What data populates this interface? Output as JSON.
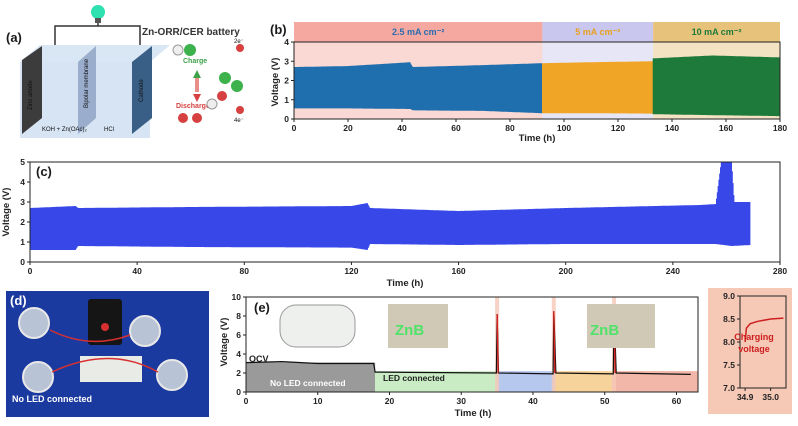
{
  "panel_a": {
    "label": "(a)",
    "title": "Zn-ORR/CER battery",
    "labels": {
      "anode": "Zinc anode",
      "membrane": "Bipolar membrane",
      "cathode": "Cathode",
      "electrolyte_left": "KOH + Zn(OAc)₂",
      "electrolyte_right": "HCl",
      "charge": "Charge",
      "discharge": "Discharge",
      "e_up": "2e⁻",
      "e_down": "4e⁻"
    },
    "colors": {
      "anode": "#3c3c3c",
      "membrane": "#8fa3c4",
      "cathode": "#3a5f86",
      "charge": "#3ea24a",
      "discharge": "#d64040"
    }
  },
  "panel_d": {
    "label": "(d)",
    "caption": "No LED connected",
    "background": "#1b3aa0"
  },
  "chart_data": [
    {
      "id": "b",
      "panel_label": "(b)",
      "type": "area",
      "xlabel": "Time (h)",
      "ylabel": "Voltage (V)",
      "xlim": [
        0,
        180
      ],
      "ylim": [
        0,
        4
      ],
      "xticks": [
        0,
        20,
        40,
        60,
        80,
        100,
        120,
        140,
        160,
        180
      ],
      "yticks": [
        0,
        1,
        2,
        3,
        4
      ],
      "bands": [
        {
          "label": "2.5 mA cm⁻²",
          "x_start": 0,
          "x_end": 92,
          "color": "#f4a8a0",
          "text_color": "#2b6cb0"
        },
        {
          "label": "5 mA cm⁻²",
          "x_start": 92,
          "x_end": 133,
          "color": "#c9c7ee",
          "text_color": "#e8a020"
        },
        {
          "label": "10 mA cm⁻²",
          "x_start": 133,
          "x_end": 180,
          "color": "#e6c27a",
          "text_color": "#1e7a3a"
        }
      ],
      "series": [
        {
          "x_start": 0,
          "x_end": 92,
          "color": "#1f6fae",
          "upper": [
            [
              0,
              2.7
            ],
            [
              20,
              2.75
            ],
            [
              43,
              2.95
            ],
            [
              44,
              2.7
            ],
            [
              70,
              2.8
            ],
            [
              92,
              2.9
            ]
          ],
          "lower": [
            [
              0,
              0.55
            ],
            [
              20,
              0.55
            ],
            [
              43,
              0.52
            ],
            [
              44,
              0.45
            ],
            [
              70,
              0.42
            ],
            [
              92,
              0.3
            ]
          ]
        },
        {
          "x_start": 92,
          "x_end": 133,
          "color": "#f0a526",
          "upper": [
            [
              92,
              2.9
            ],
            [
              110,
              2.95
            ],
            [
              133,
              3.0
            ]
          ],
          "lower": [
            [
              92,
              0.3
            ],
            [
              110,
              0.3
            ],
            [
              133,
              0.28
            ]
          ]
        },
        {
          "x_start": 133,
          "x_end": 180,
          "color": "#1e7a3a",
          "upper": [
            [
              133,
              3.15
            ],
            [
              155,
              3.3
            ],
            [
              180,
              3.2
            ]
          ],
          "lower": [
            [
              133,
              0.25
            ],
            [
              155,
              0.2
            ],
            [
              180,
              0.15
            ]
          ]
        }
      ]
    },
    {
      "id": "c",
      "panel_label": "(c)",
      "type": "area",
      "xlabel": "Time (h)",
      "ylabel": "Voltage (V)",
      "xlim": [
        0,
        280
      ],
      "ylim": [
        0,
        5
      ],
      "xticks": [
        0,
        40,
        80,
        120,
        160,
        200,
        240,
        280
      ],
      "yticks": [
        0,
        1,
        2,
        3,
        4,
        5
      ],
      "series": [
        {
          "color": "#3848e8",
          "upper": [
            [
              0,
              2.7
            ],
            [
              17,
              2.8
            ],
            [
              18,
              2.7
            ],
            [
              60,
              2.75
            ],
            [
              120,
              2.8
            ],
            [
              126,
              2.95
            ],
            [
              127,
              2.7
            ],
            [
              160,
              2.55
            ],
            [
              200,
              2.7
            ],
            [
              250,
              2.85
            ],
            [
              256,
              2.9
            ],
            [
              258,
              5.0
            ],
            [
              262,
              5.0
            ],
            [
              263,
              3.0
            ],
            [
              269,
              3.0
            ]
          ],
          "lower": [
            [
              0,
              0.6
            ],
            [
              17,
              0.6
            ],
            [
              18,
              0.8
            ],
            [
              60,
              0.75
            ],
            [
              120,
              0.72
            ],
            [
              126,
              0.6
            ],
            [
              127,
              0.9
            ],
            [
              160,
              0.85
            ],
            [
              200,
              0.9
            ],
            [
              256,
              0.9
            ],
            [
              262,
              0.8
            ],
            [
              269,
              0.85
            ]
          ]
        }
      ]
    },
    {
      "id": "e",
      "panel_label": "(e)",
      "type": "line",
      "xlabel": "Time (h)",
      "ylabel": "Voltage (V)",
      "xlim": [
        0,
        63
      ],
      "ylim": [
        0,
        10
      ],
      "xticks": [
        0,
        10,
        20,
        30,
        40,
        50,
        60
      ],
      "yticks": [
        0,
        2,
        4,
        6,
        8,
        10
      ],
      "annotations": {
        "ocv": "OCV",
        "no_led": "No LED connected",
        "led": "LED connected"
      },
      "segments": [
        {
          "x_start": 0,
          "x_end": 18,
          "color": "#9a9a9a"
        },
        {
          "x_start": 18,
          "x_end": 35,
          "color": "#c9ecc4"
        },
        {
          "x_start": 35,
          "x_end": 43,
          "color": "#b7c8ef"
        },
        {
          "x_start": 43,
          "x_end": 51,
          "color": "#f6d39a"
        },
        {
          "x_start": 51,
          "x_end": 63,
          "color": "#f2b7a8"
        }
      ],
      "series": [
        {
          "name": "voltage",
          "color": "#111111",
          "points": [
            [
              0,
              3.1
            ],
            [
              5,
              3.2
            ],
            [
              10,
              3.0
            ],
            [
              17.8,
              3.0
            ],
            [
              18,
              2.1
            ],
            [
              25,
              2.05
            ],
            [
              34.9,
              2.0
            ],
            [
              35.0,
              8.2
            ],
            [
              35.2,
              2.0
            ],
            [
              42.8,
              1.9
            ],
            [
              42.9,
              8.5
            ],
            [
              43.2,
              2.0
            ],
            [
              51.2,
              1.9
            ],
            [
              51.3,
              8.6
            ],
            [
              51.6,
              2.0
            ],
            [
              62,
              1.85
            ]
          ]
        }
      ]
    },
    {
      "id": "e-inset",
      "type": "line",
      "xlim": [
        34.88,
        35.06
      ],
      "ylim": [
        7.0,
        9.0
      ],
      "xticks": [
        34.9,
        35.0
      ],
      "yticks": [
        7.0,
        7.5,
        8.0,
        8.5,
        9.0
      ],
      "annotation": "Charging voltage",
      "series": [
        {
          "name": "charge",
          "color": "#cc1f1f",
          "points": [
            [
              34.9,
              8.0
            ],
            [
              34.905,
              8.3
            ],
            [
              34.92,
              8.4
            ],
            [
              34.95,
              8.45
            ],
            [
              35.0,
              8.5
            ],
            [
              35.05,
              8.52
            ]
          ]
        }
      ]
    }
  ]
}
